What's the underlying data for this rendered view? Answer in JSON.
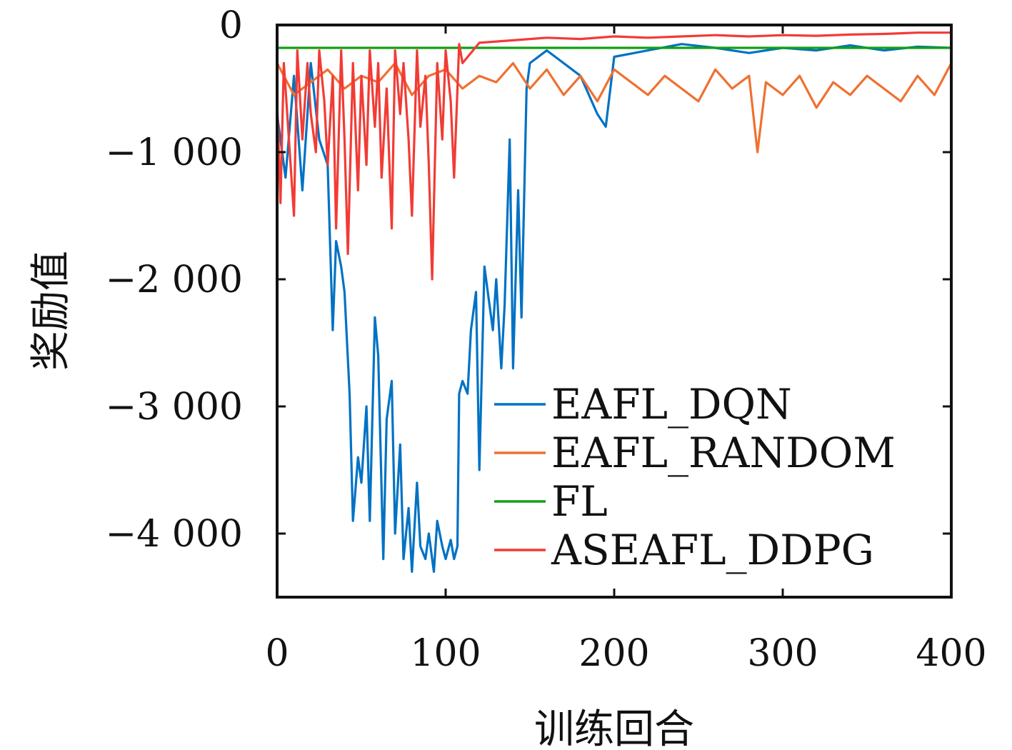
{
  "chart_data": {
    "type": "line",
    "title": "",
    "xlabel": "训练回合",
    "ylabel": "奖励值",
    "xlim": [
      0,
      400
    ],
    "ylim": [
      -4500,
      0
    ],
    "xticks": [
      0,
      100,
      200,
      300,
      400
    ],
    "xtick_labels": [
      "0",
      "100",
      "200",
      "300",
      "400"
    ],
    "yticks": [
      0,
      -1000,
      -2000,
      -3000,
      -4000
    ],
    "ytick_labels": [
      "0",
      "−1 000",
      "−2 000",
      "−3 000",
      "−4 000"
    ],
    "grid": false,
    "legend_position": "bottom-right",
    "series": [
      {
        "name": "EAFL_DQN",
        "color": "#0072c4",
        "x": [
          0,
          5,
          10,
          15,
          20,
          25,
          30,
          33,
          35,
          38,
          40,
          43,
          45,
          48,
          50,
          53,
          55,
          58,
          60,
          63,
          65,
          68,
          70,
          73,
          75,
          78,
          80,
          83,
          85,
          88,
          90,
          93,
          95,
          98,
          100,
          103,
          105,
          107,
          108,
          110,
          113,
          115,
          118,
          120,
          123,
          125,
          128,
          130,
          133,
          135,
          138,
          140,
          143,
          145,
          148,
          150,
          160,
          170,
          180,
          190,
          195,
          200,
          220,
          240,
          260,
          280,
          300,
          320,
          340,
          360,
          380,
          400
        ],
        "y": [
          -700,
          -1200,
          -400,
          -1300,
          -300,
          -900,
          -1100,
          -2400,
          -1700,
          -1900,
          -2100,
          -2900,
          -3900,
          -3400,
          -3600,
          -3000,
          -3900,
          -2300,
          -2600,
          -4200,
          -3100,
          -2800,
          -4000,
          -3300,
          -4200,
          -3800,
          -4300,
          -3600,
          -4100,
          -4200,
          -4000,
          -4300,
          -3900,
          -4100,
          -4200,
          -4050,
          -4200,
          -4100,
          -2900,
          -2800,
          -2900,
          -2400,
          -2100,
          -3500,
          -1900,
          -2100,
          -2400,
          -2000,
          -2700,
          -2200,
          -900,
          -2700,
          -1300,
          -2300,
          -500,
          -300,
          -200,
          -300,
          -400,
          -700,
          -800,
          -250,
          -200,
          -150,
          -180,
          -220,
          -180,
          -200,
          -160,
          -200,
          -170,
          -180
        ]
      },
      {
        "name": "EAFL_RANDOM",
        "color": "#f07030",
        "x": [
          0,
          10,
          20,
          30,
          40,
          50,
          60,
          70,
          80,
          90,
          100,
          110,
          120,
          130,
          140,
          150,
          160,
          170,
          180,
          190,
          200,
          210,
          220,
          230,
          240,
          250,
          260,
          270,
          280,
          285,
          290,
          300,
          310,
          320,
          330,
          340,
          350,
          360,
          370,
          380,
          390,
          400
        ],
        "y": [
          -300,
          -550,
          -450,
          -350,
          -500,
          -400,
          -450,
          -300,
          -550,
          -400,
          -350,
          -500,
          -400,
          -450,
          -300,
          -500,
          -350,
          -550,
          -400,
          -600,
          -350,
          -450,
          -550,
          -400,
          -500,
          -600,
          -350,
          -500,
          -400,
          -1000,
          -450,
          -550,
          -400,
          -650,
          -450,
          -550,
          -400,
          -500,
          -600,
          -400,
          -550,
          -300
        ]
      },
      {
        "name": "FL",
        "color": "#12a012",
        "x": [
          0,
          400
        ],
        "y": [
          -180,
          -180
        ]
      },
      {
        "name": "ASEAFL_DDPG",
        "color": "#f23b35",
        "x": [
          0,
          2,
          4,
          6,
          10,
          12,
          15,
          18,
          20,
          23,
          25,
          28,
          30,
          33,
          35,
          38,
          40,
          42,
          45,
          48,
          50,
          53,
          55,
          58,
          60,
          62,
          65,
          68,
          70,
          73,
          75,
          78,
          80,
          83,
          85,
          88,
          90,
          92,
          95,
          98,
          100,
          103,
          105,
          108,
          110,
          120,
          130,
          140,
          150,
          160,
          180,
          200,
          220,
          240,
          260,
          280,
          300,
          320,
          340,
          360,
          380,
          400
        ],
        "y": [
          -600,
          -1400,
          -300,
          -700,
          -1500,
          -200,
          -900,
          -300,
          -700,
          -1000,
          -200,
          -600,
          -1100,
          -400,
          -1600,
          -200,
          -900,
          -1800,
          -300,
          -1300,
          -400,
          -1100,
          -200,
          -800,
          -300,
          -1200,
          -500,
          -1600,
          -200,
          -700,
          -300,
          -900,
          -1500,
          -200,
          -800,
          -400,
          -1100,
          -2000,
          -300,
          -900,
          -200,
          -600,
          -1200,
          -150,
          -300,
          -140,
          -130,
          -120,
          -110,
          -100,
          -110,
          -90,
          -100,
          -90,
          -80,
          -90,
          -80,
          -85,
          -75,
          -70,
          -60,
          -60
        ]
      }
    ]
  }
}
